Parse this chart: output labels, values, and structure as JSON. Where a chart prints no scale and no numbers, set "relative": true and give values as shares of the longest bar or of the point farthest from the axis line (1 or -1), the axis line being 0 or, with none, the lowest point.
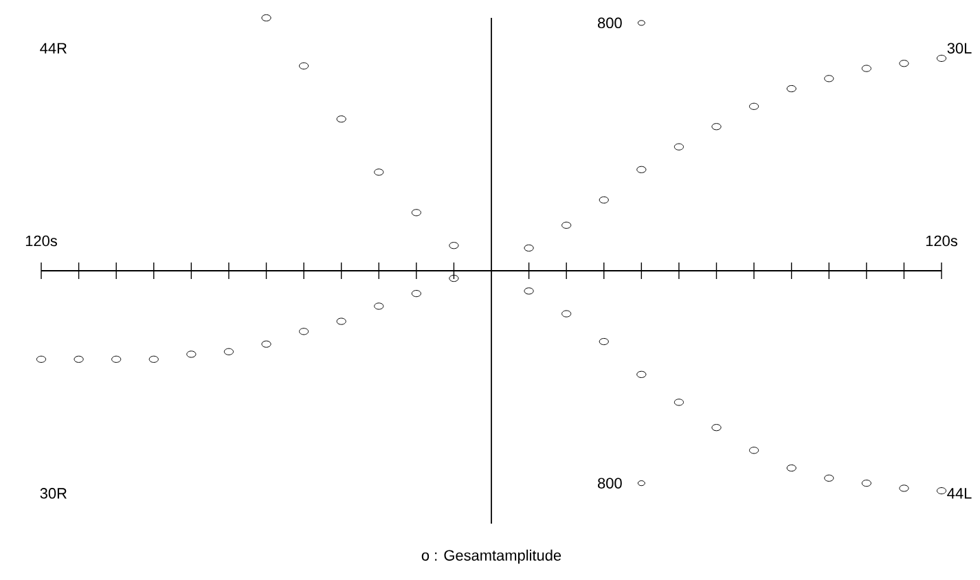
{
  "chart_data": {
    "type": "scatter",
    "relative": true,
    "marker": "circle",
    "xlim": [
      -120,
      120
    ],
    "xticks": [
      {
        "value": -120,
        "label": "120s"
      },
      {
        "value": -110,
        "label": null
      },
      {
        "value": -100,
        "label": null
      },
      {
        "value": -90,
        "label": null
      },
      {
        "value": -80,
        "label": null
      },
      {
        "value": -70,
        "label": null
      },
      {
        "value": -60,
        "label": null
      },
      {
        "value": -50,
        "label": null
      },
      {
        "value": -40,
        "label": null
      },
      {
        "value": -30,
        "label": null
      },
      {
        "value": -20,
        "label": null
      },
      {
        "value": -10,
        "label": null
      },
      {
        "value": 10,
        "label": null
      },
      {
        "value": 20,
        "label": null
      },
      {
        "value": 30,
        "label": null
      },
      {
        "value": 40,
        "label": null
      },
      {
        "value": 50,
        "label": null
      },
      {
        "value": 60,
        "label": null
      },
      {
        "value": 70,
        "label": null
      },
      {
        "value": 80,
        "label": null
      },
      {
        "value": 90,
        "label": null
      },
      {
        "value": 100,
        "label": null
      },
      {
        "value": 110,
        "label": null
      },
      {
        "value": 120,
        "label": "120s"
      }
    ],
    "series": [
      {
        "color": "#000000",
        "x": [
          -60,
          -50,
          -40,
          -30,
          -20,
          -10
        ],
        "values": [
          1.0,
          0.81,
          0.6,
          0.39,
          0.23,
          0.1
        ]
      },
      {
        "color": "#000000",
        "x": [
          10,
          20,
          30,
          40,
          50,
          60,
          70,
          80,
          90,
          100,
          110,
          120
        ],
        "values": [
          0.09,
          0.18,
          0.28,
          0.4,
          0.49,
          0.57,
          0.65,
          0.72,
          0.76,
          0.8,
          0.82,
          0.84
        ]
      },
      {
        "color": "#000000",
        "x": [
          -10,
          -20,
          -30,
          -40,
          -50,
          -60,
          -70,
          -80,
          -90,
          -100,
          -110,
          -120
        ],
        "values": [
          -0.03,
          -0.09,
          -0.14,
          -0.2,
          -0.24,
          -0.29,
          -0.32,
          -0.33,
          -0.35,
          -0.35,
          -0.35,
          -0.35
        ]
      },
      {
        "color": "#000000",
        "x": [
          10,
          20,
          30,
          40,
          50,
          60,
          70,
          80,
          90,
          100,
          110,
          120
        ],
        "values": [
          -0.08,
          -0.17,
          -0.28,
          -0.41,
          -0.52,
          -0.62,
          -0.71,
          -0.78,
          -0.82,
          -0.84,
          -0.86,
          -0.87
        ]
      }
    ],
    "annotations": [
      {
        "text": "800",
        "x": 40,
        "y": 0.98
      },
      {
        "text": "800",
        "x": 40,
        "y": -0.84
      },
      "44R",
      "30L",
      "30R",
      "44L",
      "o : Gesamtamplitude"
    ]
  }
}
